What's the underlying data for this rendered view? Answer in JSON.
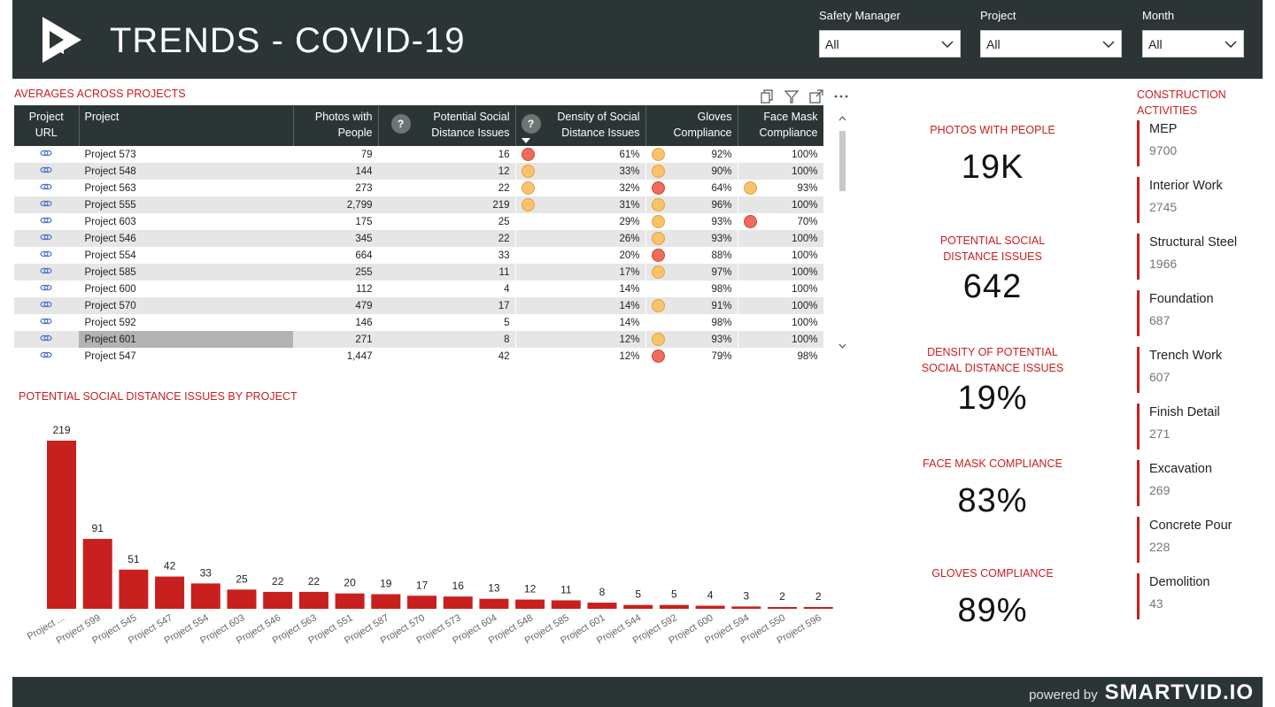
{
  "header": {
    "title": "TRENDS - COVID-19",
    "filters": [
      {
        "label": "Safety Manager",
        "value": "All"
      },
      {
        "label": "Project",
        "value": "All"
      },
      {
        "label": "Month",
        "value": "All"
      }
    ]
  },
  "table": {
    "title": "AVERAGES ACROSS PROJECTS",
    "columns": [
      "Project URL",
      "Project",
      "Photos with People",
      "Potential Social Distance Issues",
      "Density of Social Distance Issues",
      "Gloves Compliance",
      "Face Mask Compliance"
    ],
    "question_mark": "?",
    "rows": [
      {
        "project": "Project 573",
        "photos": "79",
        "issues": "16",
        "density": "61%",
        "gloves": "92%",
        "mask": "100%",
        "d1": "red",
        "d2": "orange",
        "d3": ""
      },
      {
        "project": "Project 548",
        "photos": "144",
        "issues": "12",
        "density": "33%",
        "gloves": "90%",
        "mask": "100%",
        "d1": "orange",
        "d2": "orange",
        "d3": ""
      },
      {
        "project": "Project 563",
        "photos": "273",
        "issues": "22",
        "density": "32%",
        "gloves": "64%",
        "mask": "93%",
        "d1": "orange",
        "d2": "red",
        "d3": "orange"
      },
      {
        "project": "Project 555",
        "photos": "2,799",
        "issues": "219",
        "density": "31%",
        "gloves": "96%",
        "mask": "100%",
        "d1": "orange",
        "d2": "orange",
        "d3": ""
      },
      {
        "project": "Project 603",
        "photos": "175",
        "issues": "25",
        "density": "29%",
        "gloves": "93%",
        "mask": "70%",
        "d1": "",
        "d2": "orange",
        "d3": "red"
      },
      {
        "project": "Project 546",
        "photos": "345",
        "issues": "22",
        "density": "26%",
        "gloves": "93%",
        "mask": "100%",
        "d1": "",
        "d2": "orange",
        "d3": ""
      },
      {
        "project": "Project 554",
        "photos": "664",
        "issues": "33",
        "density": "20%",
        "gloves": "88%",
        "mask": "100%",
        "d1": "",
        "d2": "red",
        "d3": ""
      },
      {
        "project": "Project 585",
        "photos": "255",
        "issues": "11",
        "density": "17%",
        "gloves": "97%",
        "mask": "100%",
        "d1": "",
        "d2": "orange",
        "d3": ""
      },
      {
        "project": "Project 600",
        "photos": "112",
        "issues": "4",
        "density": "14%",
        "gloves": "98%",
        "mask": "100%",
        "d1": "",
        "d2": "",
        "d3": ""
      },
      {
        "project": "Project 570",
        "photos": "479",
        "issues": "17",
        "density": "14%",
        "gloves": "91%",
        "mask": "100%",
        "d1": "",
        "d2": "orange",
        "d3": ""
      },
      {
        "project": "Project 592",
        "photos": "146",
        "issues": "5",
        "density": "14%",
        "gloves": "98%",
        "mask": "100%",
        "d1": "",
        "d2": "",
        "d3": ""
      },
      {
        "project": "Project 601",
        "photos": "271",
        "issues": "8",
        "density": "12%",
        "gloves": "93%",
        "mask": "100%",
        "d1": "",
        "d2": "orange",
        "d3": "",
        "selected": true
      },
      {
        "project": "Project 547",
        "photos": "1,447",
        "issues": "42",
        "density": "12%",
        "gloves": "79%",
        "mask": "98%",
        "d1": "",
        "d2": "red",
        "d3": ""
      }
    ]
  },
  "chart_data": {
    "type": "bar",
    "title": "POTENTIAL SOCIAL DISTANCE ISSUES BY PROJECT",
    "categories": [
      "Project ...",
      "Project 599",
      "Project 545",
      "Project 547",
      "Project 554",
      "Project 603",
      "Project 546",
      "Project 563",
      "Project 551",
      "Project 587",
      "Project 570",
      "Project 573",
      "Project 604",
      "Project 548",
      "Project 585",
      "Project 601",
      "Project 544",
      "Project 592",
      "Project 600",
      "Project 594",
      "Project 550",
      "Project 596"
    ],
    "values": [
      219,
      91,
      51,
      42,
      33,
      25,
      22,
      22,
      20,
      19,
      17,
      16,
      13,
      12,
      11,
      8,
      5,
      5,
      4,
      3,
      2,
      2
    ],
    "xlabel": "",
    "ylabel": "",
    "ylim": [
      0,
      219
    ],
    "grid": false,
    "color": "#c8201e"
  },
  "kpis": [
    {
      "label": "PHOTOS WITH PEOPLE",
      "value": "19K"
    },
    {
      "label": "POTENTIAL SOCIAL DISTANCE ISSUES",
      "value": "642"
    },
    {
      "label": "DENSITY OF POTENTIAL SOCIAL DISTANCE ISSUES",
      "value": "19%"
    },
    {
      "label": "FACE MASK COMPLIANCE",
      "value": "83%"
    },
    {
      "label": "GLOVES COMPLIANCE",
      "value": "89%"
    }
  ],
  "activities": {
    "title": "CONSTRUCTION ACTIVITIES",
    "items": [
      {
        "name": "MEP",
        "value": "9700"
      },
      {
        "name": "Interior Work",
        "value": "2745"
      },
      {
        "name": "Structural Steel",
        "value": "1966"
      },
      {
        "name": "Foundation",
        "value": "687"
      },
      {
        "name": "Trench Work",
        "value": "607"
      },
      {
        "name": "Finish Detail",
        "value": "271"
      },
      {
        "name": "Excavation",
        "value": "269"
      },
      {
        "name": "Concrete Pour",
        "value": "228"
      },
      {
        "name": "Demolition",
        "value": "43"
      }
    ]
  },
  "footer": {
    "powered_by": "powered by",
    "brand": "SMARTVID.IO"
  },
  "colors": {
    "header_bg": "#2b3535",
    "accent_red": "#c8201e",
    "dot_orange": "#f7c36b",
    "dot_red": "#ef6b5b"
  }
}
